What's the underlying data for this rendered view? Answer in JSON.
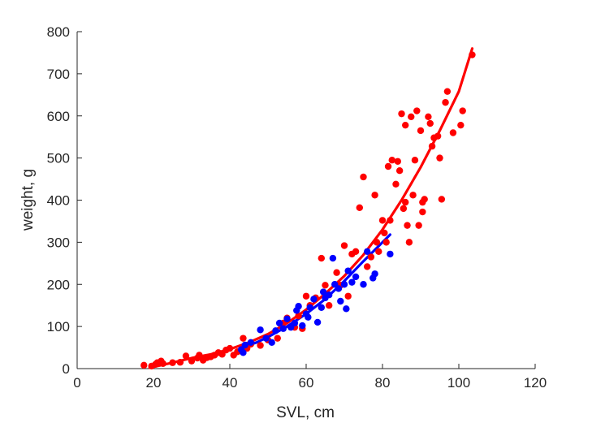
{
  "chart_data": {
    "type": "scatter",
    "title": "",
    "xlabel": "SVL, cm",
    "ylabel": "weight, g",
    "xlim": [
      0,
      120
    ],
    "ylim": [
      0,
      800
    ],
    "xticks": [
      0,
      20,
      40,
      60,
      80,
      100,
      120
    ],
    "yticks": [
      0,
      100,
      200,
      300,
      400,
      500,
      600,
      700,
      800
    ],
    "grid": false,
    "legend": "none",
    "series": [
      {
        "color": "#ff0000",
        "points": [
          [
            17.5,
            8
          ],
          [
            19.5,
            6
          ],
          [
            20.5,
            10
          ],
          [
            21,
            14
          ],
          [
            22,
            18
          ],
          [
            22.5,
            12
          ],
          [
            25,
            14
          ],
          [
            27,
            15
          ],
          [
            28.5,
            30
          ],
          [
            30,
            18
          ],
          [
            31.5,
            25
          ],
          [
            32,
            32
          ],
          [
            33,
            20
          ],
          [
            34,
            26
          ],
          [
            35,
            28
          ],
          [
            36,
            32
          ],
          [
            37,
            38
          ],
          [
            38,
            34
          ],
          [
            39,
            44
          ],
          [
            40,
            48
          ],
          [
            41,
            32
          ],
          [
            42,
            40
          ],
          [
            43.5,
            72
          ],
          [
            44.5,
            48
          ],
          [
            45.5,
            58
          ],
          [
            48,
            55
          ],
          [
            50,
            68
          ],
          [
            52.5,
            72
          ],
          [
            54,
            108
          ],
          [
            55,
            120
          ],
          [
            57,
            98
          ],
          [
            58,
            125
          ],
          [
            59,
            95
          ],
          [
            60,
            172
          ],
          [
            61,
            150
          ],
          [
            62.5,
            168
          ],
          [
            64,
            262
          ],
          [
            65,
            198
          ],
          [
            66,
            150
          ],
          [
            68,
            228
          ],
          [
            69,
            198
          ],
          [
            70,
            292
          ],
          [
            71,
            172
          ],
          [
            72,
            272
          ],
          [
            73,
            278
          ],
          [
            74,
            382
          ],
          [
            75,
            455
          ],
          [
            76,
            242
          ],
          [
            77,
            265
          ],
          [
            78,
            412
          ],
          [
            78.5,
            300
          ],
          [
            79,
            278
          ],
          [
            80,
            352
          ],
          [
            80.5,
            322
          ],
          [
            81,
            300
          ],
          [
            81.5,
            480
          ],
          [
            82,
            352
          ],
          [
            82.5,
            495
          ],
          [
            83.5,
            438
          ],
          [
            84,
            492
          ],
          [
            84.5,
            470
          ],
          [
            85,
            605
          ],
          [
            85.5,
            380
          ],
          [
            86,
            578
          ],
          [
            86,
            395
          ],
          [
            86.5,
            340
          ],
          [
            87,
            300
          ],
          [
            87.5,
            598
          ],
          [
            88,
            412
          ],
          [
            88.5,
            495
          ],
          [
            89,
            612
          ],
          [
            89.5,
            340
          ],
          [
            90,
            565
          ],
          [
            90.5,
            395
          ],
          [
            90.5,
            372
          ],
          [
            91,
            402
          ],
          [
            92,
            598
          ],
          [
            92.5,
            582
          ],
          [
            93,
            528
          ],
          [
            93.5,
            548
          ],
          [
            94.5,
            552
          ],
          [
            95,
            500
          ],
          [
            95.5,
            402
          ],
          [
            96.5,
            632
          ],
          [
            97,
            658
          ],
          [
            98.5,
            560
          ],
          [
            100.5,
            578
          ],
          [
            101,
            612
          ],
          [
            103.5,
            745
          ]
        ],
        "fit": [
          [
            19,
            2
          ],
          [
            25,
            14
          ],
          [
            30,
            25
          ],
          [
            35,
            34
          ],
          [
            40,
            46
          ],
          [
            45,
            62
          ],
          [
            50,
            82
          ],
          [
            55,
            108
          ],
          [
            60,
            140
          ],
          [
            65,
            178
          ],
          [
            70,
            220
          ],
          [
            75,
            270
          ],
          [
            80,
            330
          ],
          [
            85,
            400
          ],
          [
            90,
            478
          ],
          [
            95,
            565
          ],
          [
            100,
            658
          ],
          [
            103.5,
            760
          ]
        ]
      },
      {
        "color": "#0000ff",
        "points": [
          [
            43,
            45
          ],
          [
            43.5,
            38
          ],
          [
            44,
            56
          ],
          [
            45.5,
            62
          ],
          [
            48,
            92
          ],
          [
            49.5,
            72
          ],
          [
            51,
            62
          ],
          [
            52,
            90
          ],
          [
            53,
            108
          ],
          [
            54,
            95
          ],
          [
            55,
            118
          ],
          [
            56,
            98
          ],
          [
            57,
            108
          ],
          [
            57.5,
            138
          ],
          [
            58,
            148
          ],
          [
            59,
            102
          ],
          [
            60,
            130
          ],
          [
            60.5,
            122
          ],
          [
            61,
            145
          ],
          [
            62,
            165
          ],
          [
            63,
            110
          ],
          [
            64,
            145
          ],
          [
            64.5,
            182
          ],
          [
            65,
            168
          ],
          [
            66,
            175
          ],
          [
            67,
            262
          ],
          [
            67.5,
            200
          ],
          [
            68.5,
            190
          ],
          [
            69,
            160
          ],
          [
            70,
            200
          ],
          [
            70.5,
            142
          ],
          [
            71,
            232
          ],
          [
            72,
            205
          ],
          [
            73,
            218
          ],
          [
            75,
            200
          ],
          [
            76,
            278
          ],
          [
            77.5,
            215
          ],
          [
            78,
            225
          ],
          [
            82,
            272
          ]
        ],
        "fit": [
          [
            43,
            50
          ],
          [
            47,
            62
          ],
          [
            50,
            75
          ],
          [
            55,
            100
          ],
          [
            60,
            130
          ],
          [
            65,
            165
          ],
          [
            70,
            208
          ],
          [
            75,
            255
          ],
          [
            80,
            300
          ],
          [
            82,
            318
          ]
        ]
      }
    ]
  }
}
